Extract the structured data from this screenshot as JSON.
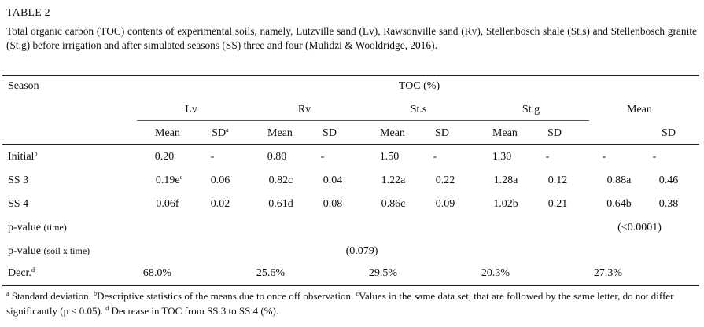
{
  "table": {
    "label": "TABLE 2",
    "caption": "Total organic carbon (TOC) contents of experimental soils, namely, Lutzville sand (Lv), Rawsonville sand (Rv), Stellenbosch shale (St.s) and Stellenbosch granite (St.g) before irrigation and after simulated seasons (SS) three and four (Mulidzi & Wooldridge, 2016).",
    "header": {
      "season": "Season",
      "group": "TOC (%)",
      "soils": [
        "Lv",
        "Rv",
        "St.s",
        "St.g",
        "Mean"
      ],
      "mean": "Mean",
      "sd": "SD",
      "sd_mark": "a"
    },
    "rows": [
      {
        "label": "Initial",
        "mark": "b",
        "cells": [
          "0.20",
          "-",
          "0.80",
          "-",
          "1.50",
          "-",
          "1.30",
          "-",
          "-",
          "-"
        ]
      },
      {
        "label": "SS 3",
        "cells": [
          "0.19e",
          "0.06",
          "0.82c",
          "0.04",
          "1.22a",
          "0.22",
          "1.28a",
          "0.12",
          "0.88a",
          "0.46"
        ],
        "first_mark": "c"
      },
      {
        "label": "SS 4",
        "cells": [
          "0.06f",
          "0.02",
          "0.61d",
          "0.08",
          "0.86c",
          "0.09",
          "1.02b",
          "0.21",
          "0.64b",
          "0.38"
        ]
      }
    ],
    "pvalue_time": {
      "label": "p-value",
      "qualifier": "(time)",
      "value": "(<0.0001)"
    },
    "pvalue_soil": {
      "label": "p-value",
      "qualifier": "(soil x time)",
      "value": "(0.079)"
    },
    "decrease": {
      "label": "Decr.",
      "mark": "d",
      "values": [
        "68.0%",
        "25.6%",
        "29.5%",
        "20.3%",
        "27.3%"
      ]
    },
    "footnotes": [
      {
        "mark": "a",
        "text": " Standard deviation. "
      },
      {
        "mark": "b",
        "text": "Descriptive statistics of the means due to once off observation. "
      },
      {
        "mark": "c",
        "text": "Values in the same data set, that are followed by the same letter, do not differ significantly (p ≤ 0.05). "
      },
      {
        "mark": "d",
        "text": " Decrease in TOC from SS 3 to SS 4 (%)."
      }
    ]
  }
}
